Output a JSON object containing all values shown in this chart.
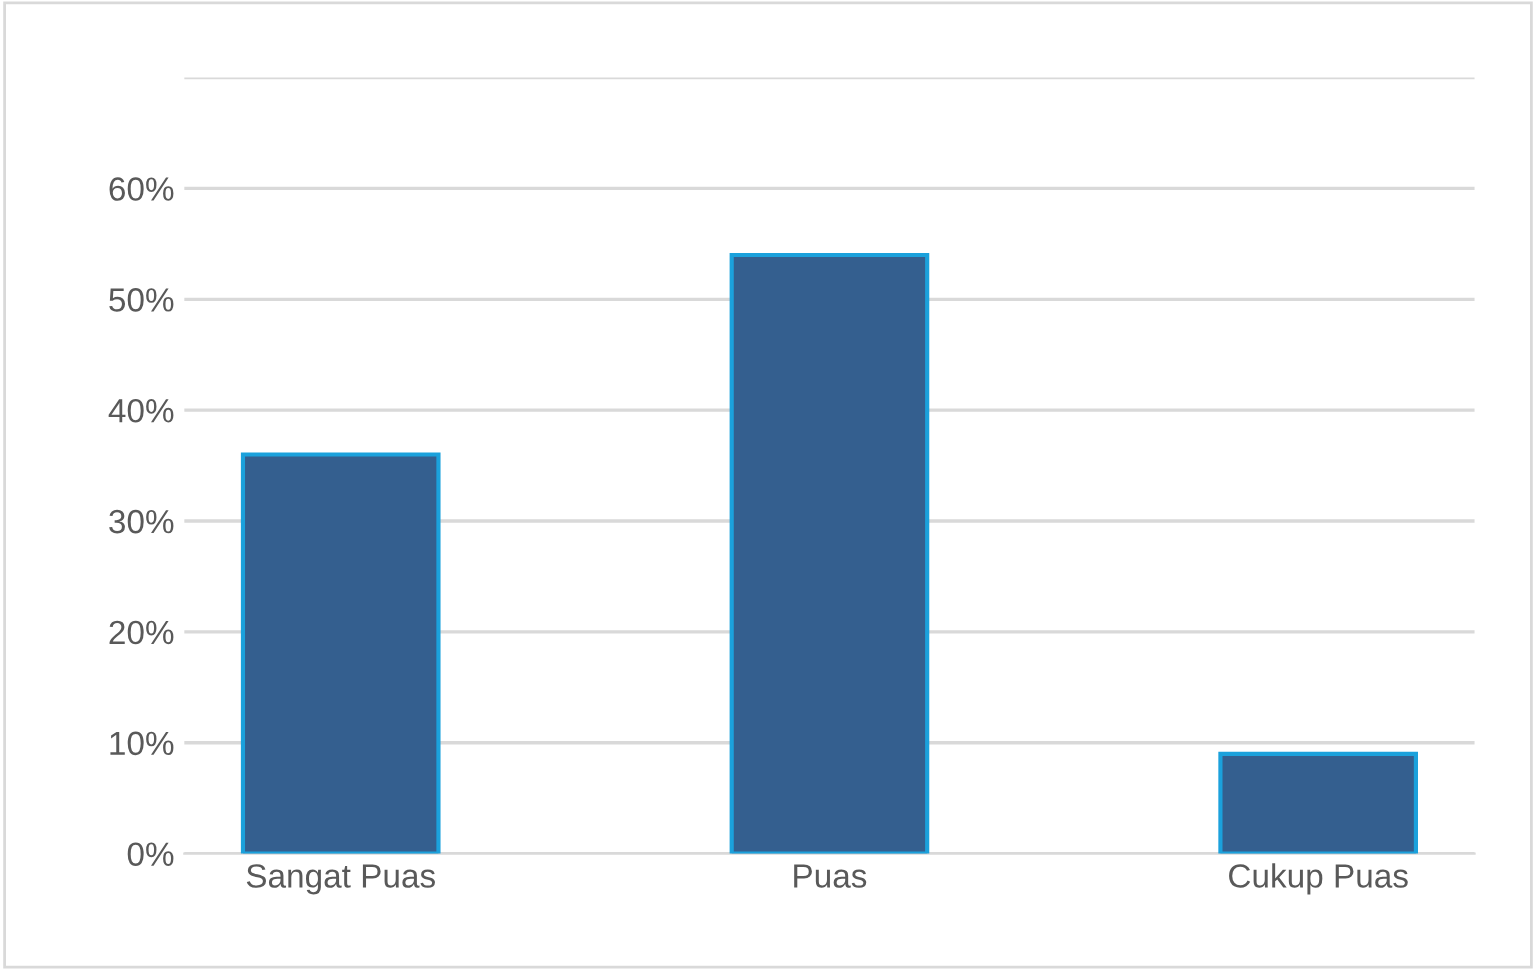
{
  "chart_data": {
    "type": "bar",
    "categories": [
      "Sangat Puas",
      "Puas",
      "Cukup Puas"
    ],
    "values": [
      0.36,
      0.54,
      0.09
    ],
    "color": "#345f8f",
    "ylim": [
      0,
      0.7
    ],
    "yticks": [
      {
        "value": 0,
        "label": "0%"
      },
      {
        "value": 0.1,
        "label": "10%"
      },
      {
        "value": 0.2,
        "label": "20%"
      },
      {
        "value": 0.3,
        "label": "30%"
      },
      {
        "value": 0.4,
        "label": "40%"
      },
      {
        "value": 0.5,
        "label": "50%"
      },
      {
        "value": 0.6,
        "label": "60%"
      },
      {
        "value": 0.7,
        "label": null
      }
    ],
    "grid": "y"
  }
}
